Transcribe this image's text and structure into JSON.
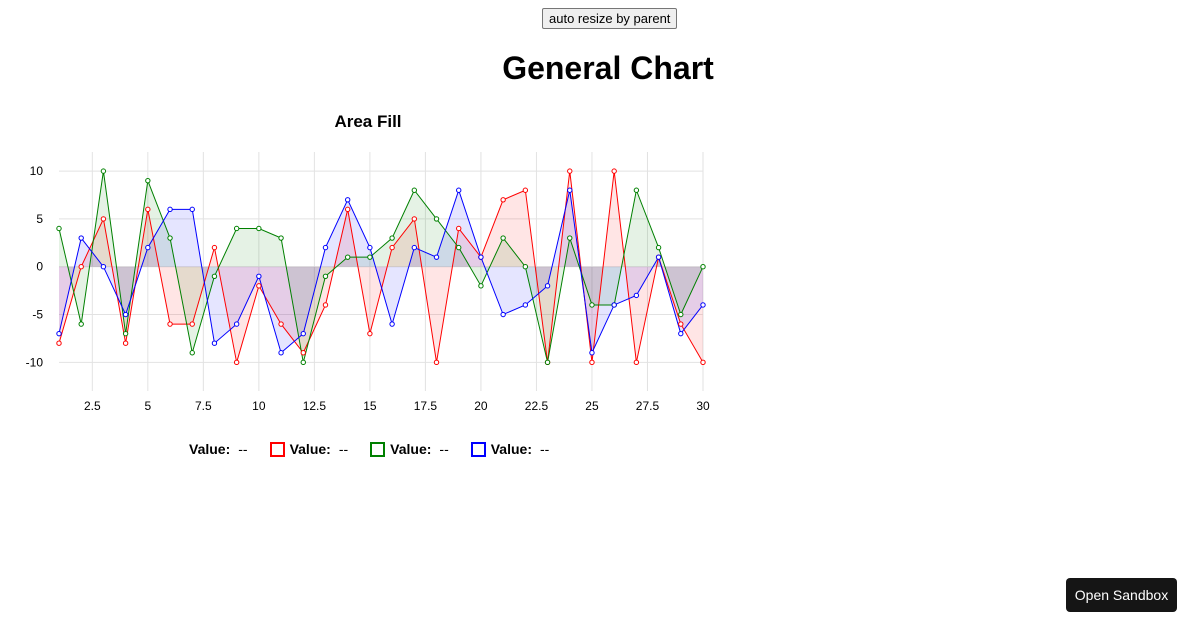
{
  "page": {
    "resize_button": "auto resize by parent",
    "title": "General Chart",
    "sandbox_button": "Open Sandbox"
  },
  "chart_data": {
    "type": "area",
    "title": "Area Fill",
    "x": [
      1,
      2,
      3,
      4,
      5,
      6,
      7,
      8,
      9,
      10,
      11,
      12,
      13,
      14,
      15,
      16,
      17,
      18,
      19,
      20,
      21,
      22,
      23,
      24,
      25,
      26,
      27,
      28,
      29,
      30
    ],
    "xlim": [
      1,
      30
    ],
    "ylim": [
      -13,
      12
    ],
    "x_ticks": [
      2.5,
      5,
      7.5,
      10,
      12.5,
      15,
      17.5,
      20,
      22.5,
      25,
      27.5,
      30
    ],
    "x_tick_labels": [
      "2.5",
      "5",
      "7.5",
      "10",
      "12.5",
      "15",
      "17.5",
      "20",
      "22.5",
      "25",
      "27.5",
      "30"
    ],
    "y_ticks": [
      10,
      5,
      0,
      -5,
      -10
    ],
    "y_tick_labels": [
      "10",
      "5",
      "0",
      "-5",
      "-10"
    ],
    "grid": true,
    "series": [
      {
        "color": "#000000",
        "values": [
          0,
          0,
          0,
          0,
          0,
          0,
          0,
          0,
          0,
          0,
          0,
          0,
          0,
          0,
          0,
          0,
          0,
          0,
          0,
          0,
          0,
          0,
          0,
          0,
          0,
          0,
          0,
          0,
          0,
          0
        ]
      },
      {
        "color": "#ff0000",
        "values": [
          -8,
          0,
          5,
          -8,
          6,
          -6,
          -6,
          2,
          -10,
          -2,
          -6,
          -9,
          -4,
          6,
          -7,
          2,
          5,
          -10,
          4,
          1,
          7,
          8,
          -10,
          10,
          -10,
          10,
          -10,
          1,
          -6,
          -10
        ]
      },
      {
        "color": "#008000",
        "values": [
          4,
          -6,
          10,
          -7,
          9,
          3,
          -9,
          -1,
          4,
          4,
          3,
          -10,
          -1,
          1,
          1,
          3,
          8,
          5,
          2,
          -2,
          3,
          0,
          -10,
          3,
          -4,
          -4,
          8,
          2,
          -5,
          0
        ]
      },
      {
        "color": "#0000ff",
        "values": [
          -7,
          3,
          0,
          -5,
          2,
          6,
          6,
          -8,
          -6,
          -1,
          -9,
          -7,
          2,
          7,
          2,
          -6,
          2,
          1,
          8,
          1,
          -5,
          -4,
          -2,
          8,
          -9,
          -4,
          -3,
          1,
          -7,
          -4
        ]
      }
    ],
    "legend": {
      "position": "bottom",
      "items": [
        {
          "key": "Value:",
          "value": "--",
          "color": "#000000"
        },
        {
          "key": "Value:",
          "value": "--",
          "color": "#ff0000"
        },
        {
          "key": "Value:",
          "value": "--",
          "color": "#008000"
        },
        {
          "key": "Value:",
          "value": "--",
          "color": "#0000ff"
        }
      ]
    }
  }
}
